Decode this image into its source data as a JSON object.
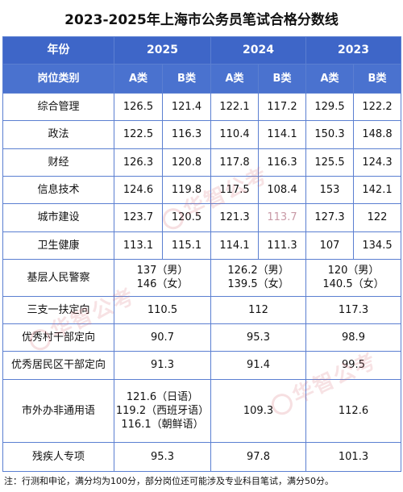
{
  "title": "2023-2025年上海市公务员笔试合格分数线",
  "header": {
    "col0": "年份",
    "years": [
      "2025",
      "2024",
      "2023"
    ],
    "subheader_label": "岗位类别",
    "sub": [
      "A类",
      "B类",
      "A类",
      "B类",
      "A类",
      "B类"
    ]
  },
  "rows": [
    {
      "label": "综合管理",
      "values": [
        "126.5",
        "121.4",
        "122.1",
        "117.2",
        "129.5",
        "122.2"
      ]
    },
    {
      "label": "政法",
      "values": [
        "122.5",
        "116.3",
        "110.4",
        "114.1",
        "150.3",
        "148.8"
      ]
    },
    {
      "label": "财经",
      "values": [
        "126.3",
        "120.8",
        "117.8",
        "116.3",
        "125.5",
        "124.3"
      ]
    },
    {
      "label": "信息技术",
      "values": [
        "124.6",
        "119.8",
        "117.5",
        "108.4",
        "153",
        "142.1"
      ]
    },
    {
      "label": "城市建设",
      "values": [
        "123.7",
        "120.5",
        "121.3",
        "113.7",
        "127.3",
        "122"
      ]
    },
    {
      "label": "卫生健康",
      "values": [
        "113.1",
        "115.1",
        "114.1",
        "111.3",
        "107",
        "134.5"
      ]
    }
  ],
  "police": {
    "label": "基层人民警察",
    "y2025": [
      "137（男）",
      "146（女）"
    ],
    "y2024": [
      "126.2（男）",
      "139.5（女）"
    ],
    "y2023": [
      "120（男）",
      "140.5（女）"
    ]
  },
  "merged_rows": [
    {
      "label": "三支一扶定向",
      "values": [
        "110.5",
        "112",
        "117.3"
      ]
    },
    {
      "label": "优秀村干部定向",
      "values": [
        "90.7",
        "95.3",
        "98.9"
      ]
    },
    {
      "label": "优秀居民区干部定向",
      "values": [
        "91.3",
        "91.4",
        "99.5"
      ]
    }
  ],
  "foreign": {
    "label": "市外办非通用语",
    "y2025": [
      "121.6（日语）",
      "119.2（西班牙语）",
      "116.1（朝鲜语）"
    ],
    "y2024": "109.3",
    "y2023": "112.6"
  },
  "disabled": {
    "label": "残疾人专项",
    "values": [
      "95.3",
      "97.8",
      "101.3"
    ]
  },
  "note": "注：行测和申论，满分均为100分，部分岗位还可能涉及专业科目笔试，满分50分。",
  "watermark": "华智公考",
  "colors": {
    "header_bg": "#3e66c8",
    "subheader_bg": "#4a72cf",
    "border": "#5b7fd1",
    "highlight": "#c99aa7",
    "watermark": "#d66e78"
  }
}
